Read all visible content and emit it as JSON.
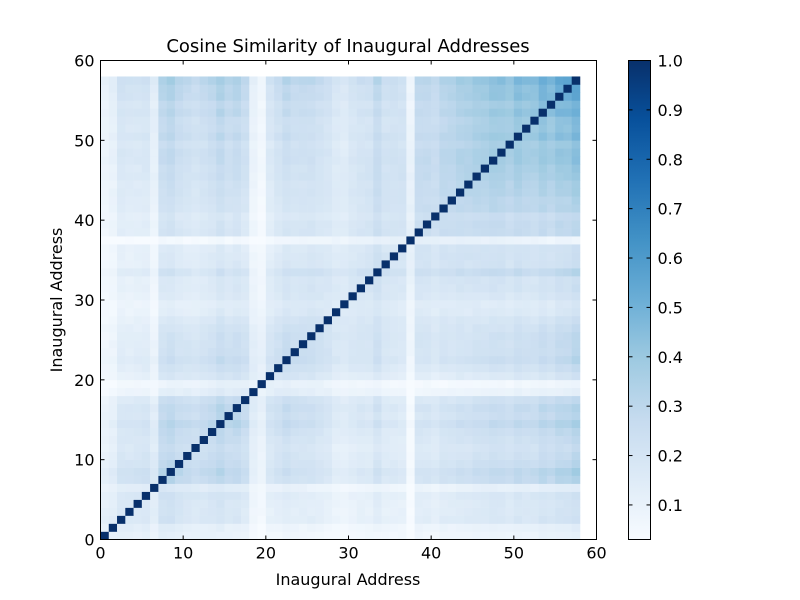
{
  "chart_data": {
    "type": "heatmap",
    "title": "Cosine Similarity of Inaugural Addresses",
    "xlabel": "Inaugural Address",
    "ylabel": "Inaugural Address",
    "n": 58,
    "xlim": [
      0,
      60
    ],
    "ylim": [
      0,
      60
    ],
    "xticks": [
      0,
      10,
      20,
      30,
      40,
      50,
      60
    ],
    "yticks": [
      0,
      10,
      20,
      30,
      40,
      50,
      60
    ],
    "colormap": "Blues",
    "color_low": "#f7fbff",
    "color_high": "#08306b",
    "colorbar": {
      "range": [
        0.03,
        1.0
      ],
      "ticks": [
        0.1,
        0.2,
        0.3,
        0.4,
        0.5,
        0.6,
        0.7,
        0.8,
        0.9,
        1.0
      ],
      "tick_labels": [
        "0.1",
        "0.2",
        "0.3",
        "0.4",
        "0.5",
        "0.6",
        "0.7",
        "0.8",
        "0.9",
        "1.0"
      ]
    },
    "diagonal_value": 1.0,
    "base_similarity": 0.12,
    "address_weights": [
      0.45,
      0.55,
      0.95,
      0.9,
      0.9,
      0.95,
      0.6,
      1.4,
      1.5,
      1.3,
      1.2,
      1.1,
      1.2,
      1.3,
      1.5,
      1.3,
      1.4,
      1.2,
      0.5,
      0.3,
      0.9,
      1.1,
      1.3,
      1.2,
      1.2,
      1.2,
      1.1,
      1.0,
      0.8,
      0.75,
      0.9,
      1.0,
      1.0,
      1.3,
      1.0,
      1.0,
      0.95,
      0.3,
      1.2,
      1.2,
      1.1,
      1.3,
      1.3,
      1.4,
      1.4,
      1.5,
      1.5,
      1.6,
      1.6,
      1.5,
      1.7,
      1.6,
      1.6,
      1.8,
      1.7,
      1.9,
      1.9,
      2.1
    ]
  }
}
